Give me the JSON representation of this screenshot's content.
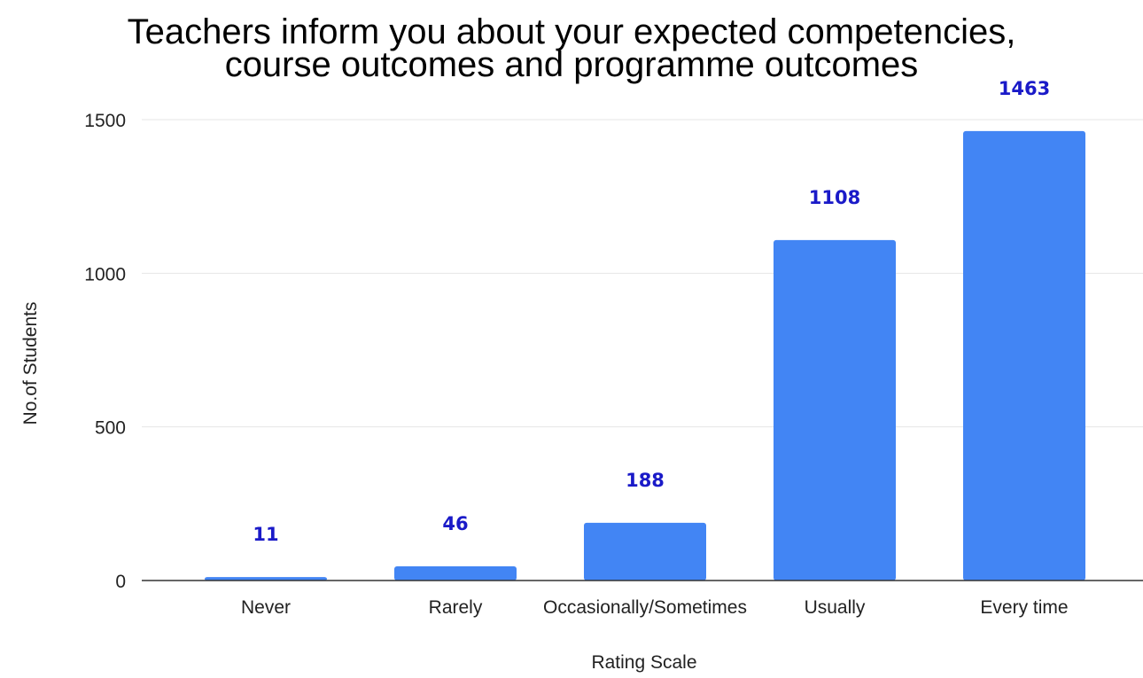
{
  "chart_data": {
    "type": "bar",
    "title_lines": [
      "Teachers inform you about your expected competencies,",
      "course outcomes and programme outcomes"
    ],
    "xlabel": "Rating Scale",
    "ylabel": "No.of Students",
    "categories": [
      "Never",
      "Rarely",
      "Occasionally/Sometimes",
      "Usually",
      "Every time"
    ],
    "values": [
      11,
      46,
      188,
      1108,
      1463
    ],
    "data_labels": [
      "11",
      "46",
      "188",
      "1108",
      "1463"
    ],
    "ylim": [
      0,
      1500
    ],
    "yticks": [
      0,
      500,
      1000,
      1500
    ],
    "ytick_labels": [
      "0",
      "500",
      "1000",
      "1500"
    ],
    "grid": true,
    "legend": "none",
    "colors": {
      "bar": "#4285f4",
      "data_label": "#1a1ac8"
    }
  }
}
